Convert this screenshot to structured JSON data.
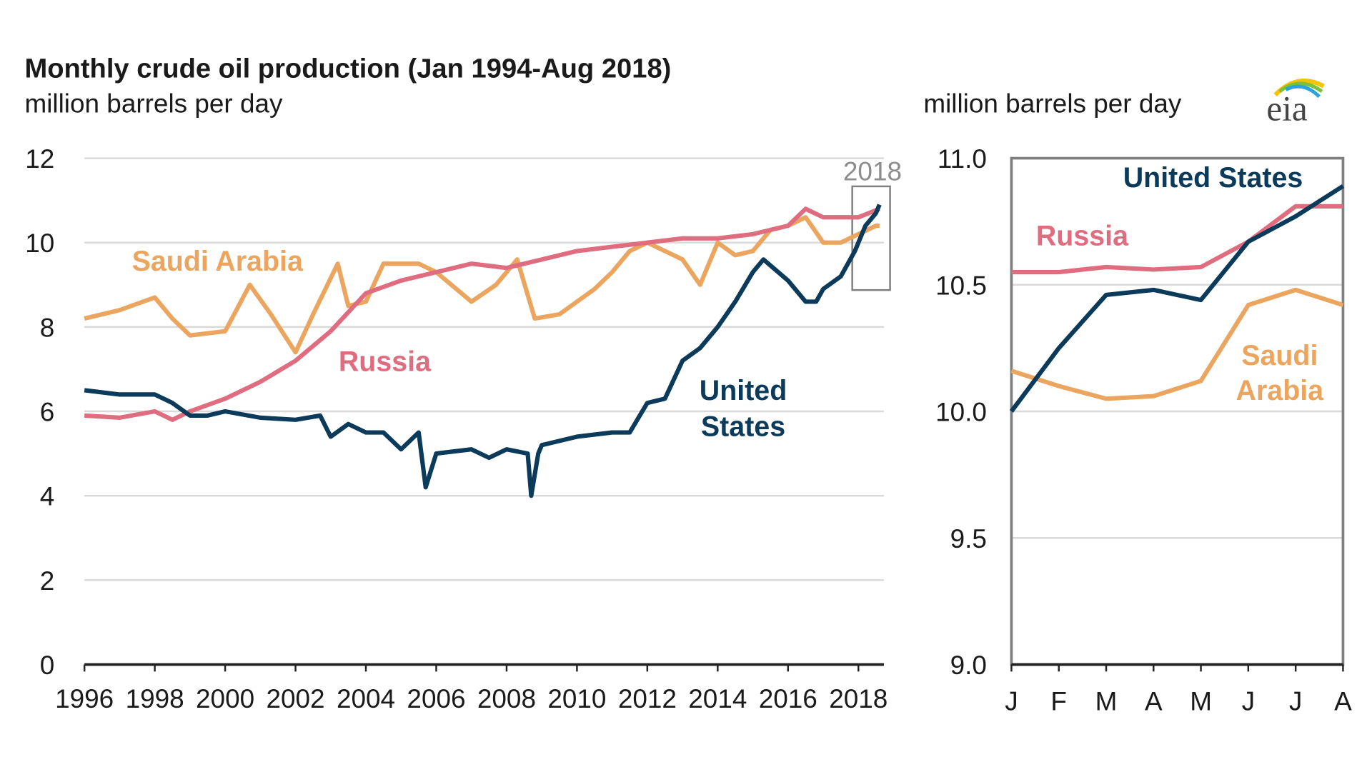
{
  "chart_data": [
    {
      "type": "line",
      "title": "Monthly crude oil production (Jan 1994-Aug 2018)",
      "ylabel": "million barrels per day",
      "xlabel": "",
      "xlim": [
        1996,
        2018.7
      ],
      "ylim": [
        0,
        12
      ],
      "yticks": [
        "0",
        "2",
        "4",
        "6",
        "8",
        "10",
        "12"
      ],
      "xticks": [
        "1996",
        "1998",
        "2000",
        "2002",
        "2004",
        "2006",
        "2008",
        "2010",
        "2012",
        "2014",
        "2016",
        "2018"
      ],
      "grid": true,
      "highlight_label": "2018",
      "series": [
        {
          "name": "United States",
          "color": "#0b3a5a",
          "x": [
            1996,
            1997,
            1998,
            1998.5,
            1999,
            1999.5,
            2000,
            2001,
            2002,
            2002.7,
            2003,
            2003.5,
            2004,
            2004.5,
            2005,
            2005.5,
            2005.7,
            2006,
            2007,
            2007.5,
            2008,
            2008.6,
            2008.7,
            2008.9,
            2009,
            2010,
            2011,
            2011.5,
            2012,
            2012.5,
            2013,
            2013.5,
            2014,
            2014.5,
            2015,
            2015.3,
            2016,
            2016.5,
            2016.8,
            2017,
            2017.5,
            2017.9,
            2018,
            2018.2,
            2018.5,
            2018.6
          ],
          "y": [
            6.5,
            6.4,
            6.4,
            6.2,
            5.9,
            5.9,
            6.0,
            5.85,
            5.8,
            5.9,
            5.4,
            5.7,
            5.5,
            5.5,
            5.1,
            5.5,
            4.2,
            5.0,
            5.1,
            4.9,
            5.1,
            5.0,
            4.0,
            5.0,
            5.2,
            5.4,
            5.5,
            5.5,
            6.2,
            6.3,
            7.2,
            7.5,
            8.0,
            8.6,
            9.3,
            9.6,
            9.1,
            8.6,
            8.6,
            8.9,
            9.2,
            9.8,
            10.0,
            10.4,
            10.7,
            10.9
          ]
        },
        {
          "name": "Russia",
          "color": "#e06c80",
          "x": [
            1996,
            1997,
            1998,
            1998.5,
            1999,
            2000,
            2001,
            2002,
            2003,
            2004,
            2005,
            2006,
            2007,
            2008,
            2009,
            2010,
            2011,
            2012,
            2013,
            2014,
            2015,
            2016,
            2016.5,
            2017,
            2018,
            2018.6
          ],
          "y": [
            5.9,
            5.85,
            6.0,
            5.8,
            6.0,
            6.3,
            6.7,
            7.2,
            7.9,
            8.8,
            9.1,
            9.3,
            9.5,
            9.4,
            9.6,
            9.8,
            9.9,
            10.0,
            10.1,
            10.1,
            10.2,
            10.4,
            10.8,
            10.6,
            10.6,
            10.8
          ]
        },
        {
          "name": "Saudi Arabia",
          "color": "#eba55f",
          "x": [
            1996,
            1997,
            1998,
            1998.5,
            1999,
            2000,
            2000.7,
            2001.3,
            2002,
            2002.5,
            2003.2,
            2003.5,
            2004,
            2004.5,
            2005.5,
            2006,
            2007,
            2007.7,
            2008.3,
            2008.8,
            2009.5,
            2010.5,
            2011,
            2011.5,
            2012,
            2012.5,
            2013,
            2013.5,
            2014,
            2014.5,
            2015,
            2015.5,
            2016,
            2016.5,
            2017,
            2017.5,
            2018,
            2018.5,
            2018.6
          ],
          "y": [
            8.2,
            8.4,
            8.7,
            8.2,
            7.8,
            7.9,
            9.0,
            8.3,
            7.4,
            8.3,
            9.5,
            8.5,
            8.6,
            9.5,
            9.5,
            9.3,
            8.6,
            9.0,
            9.6,
            8.2,
            8.3,
            8.9,
            9.3,
            9.8,
            10.0,
            9.8,
            9.6,
            9.0,
            10.0,
            9.7,
            9.8,
            10.3,
            10.4,
            10.6,
            10.0,
            10.0,
            10.2,
            10.4,
            10.4
          ]
        }
      ]
    },
    {
      "type": "line",
      "ylabel": "million barrels per day",
      "categories": [
        "J",
        "F",
        "M",
        "A",
        "M",
        "J",
        "J",
        "A"
      ],
      "ylim": [
        9.0,
        11.0
      ],
      "yticks": [
        "9.0",
        "9.5",
        "10.0",
        "10.5",
        "11.0"
      ],
      "grid": true,
      "series": [
        {
          "name": "United States",
          "color": "#0b3a5a",
          "values": [
            10.0,
            10.25,
            10.46,
            10.48,
            10.44,
            10.67,
            10.77,
            10.89
          ]
        },
        {
          "name": "Russia",
          "color": "#e06c80",
          "values": [
            10.55,
            10.55,
            10.57,
            10.56,
            10.57,
            10.67,
            10.81,
            10.81
          ]
        },
        {
          "name": "Saudi Arabia",
          "color": "#eba55f",
          "values": [
            10.16,
            10.1,
            10.05,
            10.06,
            10.12,
            10.42,
            10.48,
            10.42
          ]
        }
      ]
    }
  ],
  "labels": {
    "us_left_1": "United",
    "us_left_2": "States",
    "saudi_left": "Saudi Arabia",
    "russia_left": "Russia",
    "us_right": "United States",
    "russia_right": "Russia",
    "saudi_right_1": "Saudi",
    "saudi_right_2": "Arabia"
  },
  "logo": "eia"
}
